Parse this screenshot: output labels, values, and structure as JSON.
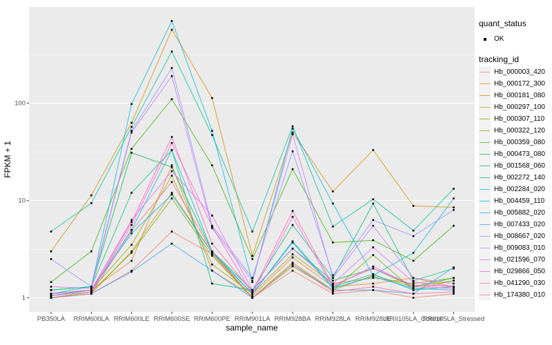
{
  "figure": {
    "background": "#FFFFFF",
    "panel_background": "#EBEBEB",
    "grid_major_color": "#FFFFFF",
    "grid_minor_color": "#FFFFFF",
    "tick_label_color": "#4D4D4D",
    "marker_color": "#000000"
  },
  "chart_data": {
    "type": "line",
    "title": "",
    "xlabel": "sample_name",
    "ylabel": "FPKM + 1",
    "y_scale": "log10",
    "y_ticks": [
      1,
      10,
      100
    ],
    "y_minor": [
      3.162,
      31.62,
      316.2
    ],
    "ylim_log": [
      -0.145,
      2.99
    ],
    "grid": true,
    "legend_position": "right",
    "categories": [
      "PB350LA",
      "RRIM600LA",
      "RRIM600LE",
      "RRIM600SE",
      "RRIM600PE",
      "RRIM901LA",
      "RRIM928BA",
      "RRIM928LA",
      "RRIM928LE",
      "RRII105LA_Control",
      "RRII105LA_Stressed"
    ],
    "legend": {
      "quant_status_title": "quant_status",
      "quant_status_items": [
        {
          "label": "OK",
          "marker": "point"
        }
      ],
      "tracking_id_title": "tracking_id"
    },
    "series": [
      {
        "name": "Hb_000003_420",
        "color": "#F8766D",
        "values": [
          1.0,
          1.1,
          1.9,
          4.8,
          2.8,
          1.0,
          1.9,
          1.1,
          1.2,
          1.0,
          1.1
        ]
      },
      {
        "name": "Hb_000172_300",
        "color": "#EA8331",
        "values": [
          1.05,
          1.2,
          2.4,
          23,
          1.9,
          1.05,
          2.6,
          1.3,
          1.4,
          1.6,
          1.3
        ]
      },
      {
        "name": "Hb_000181_080",
        "color": "#D89000",
        "values": [
          3.0,
          11.3,
          63,
          570,
          113,
          2.7,
          50,
          12.4,
          33,
          8.8,
          8.5
        ]
      },
      {
        "name": "Hb_000297_100",
        "color": "#C09B00",
        "values": [
          1.0,
          1.1,
          3.0,
          12,
          2.9,
          1.0,
          2.3,
          1.2,
          1.7,
          1.3,
          1.5
        ]
      },
      {
        "name": "Hb_000307_110",
        "color": "#A3A500",
        "values": [
          1.1,
          1.2,
          3.5,
          18,
          2.2,
          1.1,
          2.8,
          1.4,
          1.6,
          1.4,
          1.6
        ]
      },
      {
        "name": "Hb_000322_120",
        "color": "#7CAE00",
        "values": [
          1.0,
          1.15,
          2.9,
          10.5,
          2.7,
          1.0,
          2.1,
          1.2,
          2.75,
          1.2,
          1.5
        ]
      },
      {
        "name": "Hb_000359_080",
        "color": "#39B600",
        "values": [
          1.45,
          3.0,
          34,
          110,
          23,
          2.5,
          21,
          3.7,
          3.9,
          2.4,
          5.5
        ]
      },
      {
        "name": "Hb_000473_080",
        "color": "#00BB4E",
        "values": [
          1.2,
          1.3,
          31,
          22,
          3.0,
          1.2,
          3.2,
          1.5,
          2.0,
          1.3,
          1.6
        ]
      },
      {
        "name": "Hb_001568_060",
        "color": "#00C087",
        "values": [
          1.2,
          1.3,
          12,
          33,
          1.4,
          1.2,
          5.6,
          1.6,
          9.3,
          1.5,
          2.0
        ]
      },
      {
        "name": "Hb_002272_140",
        "color": "#00C1A3",
        "values": [
          4.8,
          9.4,
          57,
          340,
          47,
          4.8,
          58,
          5.4,
          10.3,
          4.9,
          13.2
        ]
      },
      {
        "name": "Hb_002284_020",
        "color": "#00BFC4",
        "values": [
          1.1,
          1.2,
          5.0,
          33,
          3.0,
          1.1,
          3.8,
          1.3,
          1.75,
          1.2,
          1.3
        ]
      },
      {
        "name": "Hb_004459_110",
        "color": "#00BAE0",
        "values": [
          1.1,
          1.3,
          98,
          700,
          52,
          1.45,
          55,
          9.3,
          1.7,
          2.9,
          10.5
        ]
      },
      {
        "name": "Hb_005882_020",
        "color": "#00B0F6",
        "values": [
          1.05,
          1.2,
          4.6,
          11.5,
          2.9,
          1.1,
          3.7,
          1.25,
          1.65,
          1.25,
          1.2
        ]
      },
      {
        "name": "Hb_007433_020",
        "color": "#35A2FF",
        "values": [
          1.0,
          1.1,
          1.85,
          3.6,
          1.9,
          1.0,
          2.2,
          1.2,
          1.2,
          1.1,
          2.05
        ]
      },
      {
        "name": "Hb_008667_020",
        "color": "#9590FF",
        "values": [
          2.5,
          1.3,
          52,
          230,
          5.5,
          1.6,
          32,
          1.7,
          6.3,
          4.3,
          8.0
        ]
      },
      {
        "name": "Hb_009083_010",
        "color": "#C77CFF",
        "values": [
          1.3,
          1.25,
          50,
          190,
          5.2,
          1.5,
          48,
          1.6,
          5.5,
          1.6,
          1.4
        ]
      },
      {
        "name": "Hb_021596_070",
        "color": "#E76BF3",
        "values": [
          1.1,
          1.2,
          6.3,
          20,
          7.0,
          1.2,
          3.2,
          1.4,
          3.3,
          1.45,
          1.3
        ]
      },
      {
        "name": "Hb_029866_050",
        "color": "#FA62DB",
        "values": [
          1.05,
          1.15,
          5.6,
          39,
          5.4,
          1.1,
          6.8,
          1.3,
          2.1,
          1.3,
          1.25
        ]
      },
      {
        "name": "Hb_041290_030",
        "color": "#FF62BC",
        "values": [
          1.1,
          1.2,
          6.0,
          45,
          3.6,
          1.15,
          7.8,
          1.35,
          2.0,
          1.35,
          1.3
        ]
      },
      {
        "name": "Hb_174380_010",
        "color": "#FF6A98",
        "values": [
          1.0,
          1.1,
          4.9,
          15.5,
          3.0,
          1.0,
          2.2,
          1.15,
          1.3,
          1.1,
          1.15
        ]
      }
    ]
  }
}
